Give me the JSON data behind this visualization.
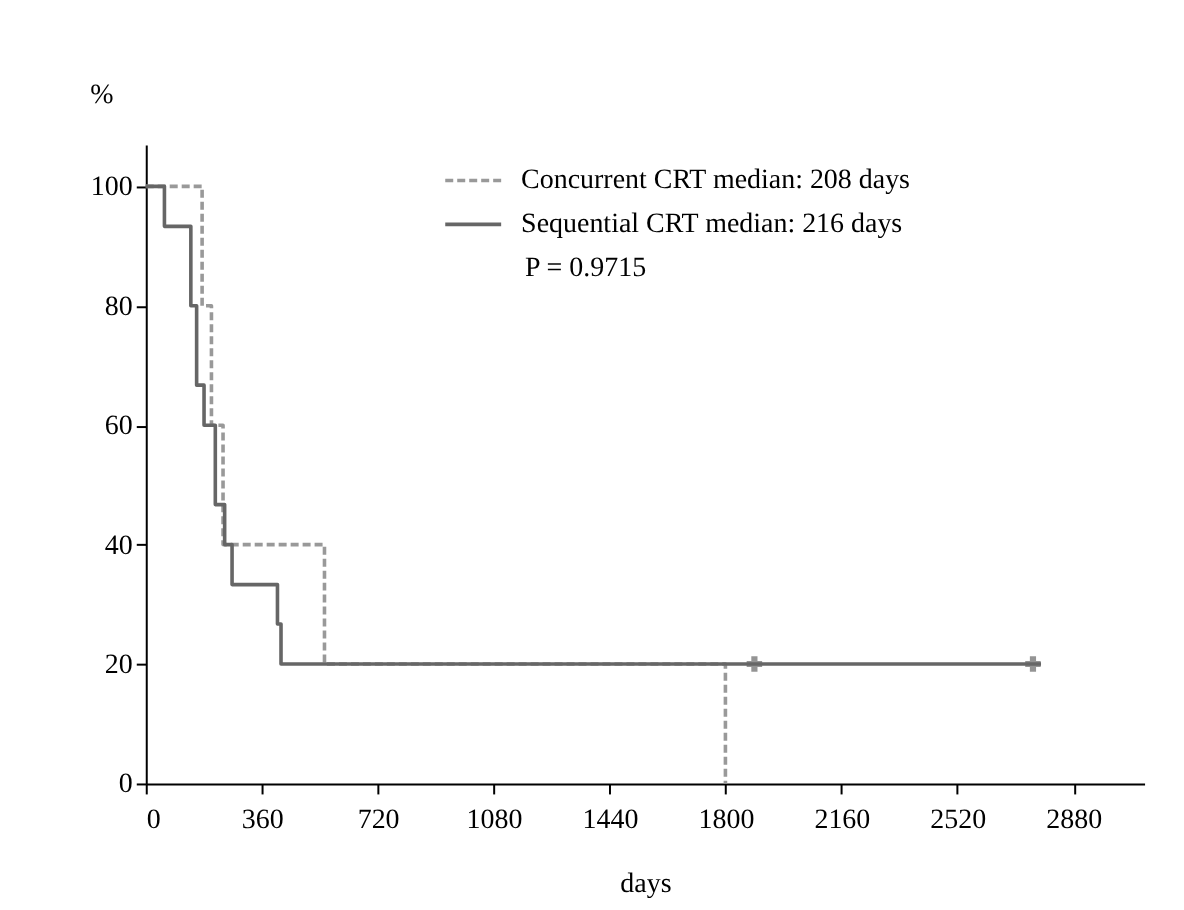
{
  "chart_data": {
    "type": "step",
    "xlabel": "days",
    "ylabel": "%",
    "xlim": [
      0,
      3100
    ],
    "xticks": [
      0,
      360,
      720,
      1080,
      1440,
      1800,
      2160,
      2520,
      2880
    ],
    "ylim": [
      0,
      107
    ],
    "yticks": [
      0,
      20,
      40,
      60,
      80,
      100
    ],
    "grid": false,
    "legend": "top",
    "series": [
      {
        "name": "Concurrent CRT median: 208 days",
        "color": "#999999",
        "line_style": "dashed",
        "x": [
          0,
          175,
          204,
          240,
          555,
          1800
        ],
        "values": [
          100,
          80,
          60,
          40,
          20,
          0
        ]
      },
      {
        "name": "Sequential CRT median: 216 days",
        "color": "#666666",
        "line_style": "solid",
        "x": [
          0,
          58,
          140,
          158,
          181,
          216,
          245,
          268,
          409,
          420,
          2780
        ],
        "values": [
          100,
          93.3,
          80,
          66.7,
          60,
          46.7,
          40,
          33.3,
          26.7,
          20,
          20
        ]
      },
      {
        "type": "scatter",
        "marker": "cross",
        "color": "#666666",
        "x": [
          1890,
          2755
        ],
        "values": [
          20,
          20
        ]
      }
    ],
    "annotations": [
      "P = 0.9715"
    ]
  }
}
